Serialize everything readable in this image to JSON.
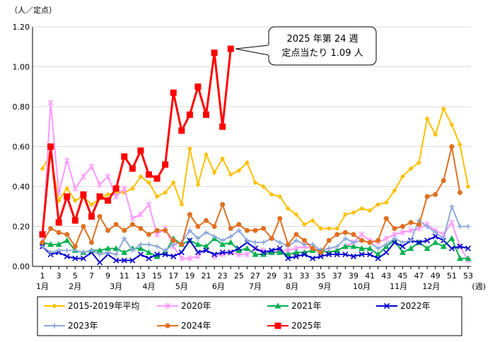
{
  "chart_data": {
    "type": "line",
    "y_unit_label": "（人／定点）",
    "x_unit_label": "(週)",
    "ylim": [
      0,
      1.2
    ],
    "yticks": [
      "0.00",
      "0.20",
      "0.40",
      "0.60",
      "0.80",
      "1.00",
      "1.20"
    ],
    "ytick_values": [
      0,
      0.2,
      0.4,
      0.6,
      0.8,
      1.0,
      1.2
    ],
    "xlim": [
      1,
      53
    ],
    "xticks": [
      1,
      3,
      5,
      7,
      9,
      11,
      13,
      15,
      17,
      19,
      21,
      23,
      25,
      27,
      29,
      31,
      33,
      35,
      37,
      39,
      41,
      43,
      45,
      47,
      49,
      51,
      53
    ],
    "month_labels": [
      {
        "week": 1,
        "label": "1月"
      },
      {
        "week": 5,
        "label": "2月"
      },
      {
        "week": 10,
        "label": "3月"
      },
      {
        "week": 14,
        "label": "4月"
      },
      {
        "week": 18,
        "label": "5月"
      },
      {
        "week": 22.5,
        "label": "6月"
      },
      {
        "week": 27,
        "label": "7月"
      },
      {
        "week": 31.5,
        "label": "8月"
      },
      {
        "week": 35.5,
        "label": "9月"
      },
      {
        "week": 40,
        "label": "10月"
      },
      {
        "week": 44.5,
        "label": "11月"
      },
      {
        "week": 48.5,
        "label": "12月"
      }
    ],
    "grid": "horizontal",
    "legend_position": "bottom",
    "annotation": {
      "lines": [
        "2025 年第 24 週",
        "定点当たり 1.09 人"
      ],
      "target_week": 24,
      "target_value": 1.09
    },
    "series": [
      {
        "name": "2015-2019年平均",
        "color": "#ffc000",
        "marker": "diamond",
        "values": [
          0.49,
          0.56,
          0.33,
          0.39,
          0.33,
          0.35,
          0.31,
          0.34,
          0.36,
          0.37,
          0.37,
          0.39,
          0.45,
          0.42,
          0.35,
          0.37,
          0.42,
          0.31,
          0.59,
          0.41,
          0.56,
          0.47,
          0.54,
          0.46,
          0.48,
          0.52,
          0.42,
          0.4,
          0.36,
          0.35,
          0.29,
          0.26,
          0.21,
          0.23,
          0.19,
          0.19,
          0.19,
          0.26,
          0.27,
          0.29,
          0.28,
          0.31,
          0.32,
          0.38,
          0.45,
          0.49,
          0.52,
          0.74,
          0.66,
          0.79,
          0.71,
          0.61,
          0.4
        ]
      },
      {
        "name": "2020年",
        "color": "#ff99ff",
        "marker": "star",
        "values": [
          0.11,
          0.82,
          0.37,
          0.53,
          0.39,
          0.45,
          0.5,
          0.41,
          0.45,
          0.35,
          0.39,
          0.24,
          0.26,
          0.31,
          0.16,
          0.19,
          0.1,
          0.04,
          0.04,
          0.05,
          0.09,
          0.05,
          0.06,
          0.07,
          0.06,
          0.06,
          0.09,
          0.08,
          0.07,
          0.08,
          0.08,
          0.09,
          0.1,
          0.09,
          0.08,
          0.07,
          0.08,
          0.1,
          0.12,
          0.16,
          0.13,
          0.12,
          0.14,
          0.16,
          0.17,
          0.18,
          0.19,
          0.21,
          0.18,
          0.16,
          0.22,
          0.1,
          0.03
        ]
      },
      {
        "name": "2021年",
        "color": "#00b050",
        "marker": "triangle",
        "values": [
          0.12,
          0.11,
          0.11,
          0.13,
          0.08,
          0.07,
          0.08,
          0.08,
          0.09,
          0.09,
          0.07,
          0.09,
          0.09,
          0.07,
          0.05,
          0.07,
          0.14,
          0.11,
          0.13,
          0.11,
          0.1,
          0.14,
          0.11,
          0.12,
          0.08,
          0.09,
          0.06,
          0.06,
          0.07,
          0.07,
          0.06,
          0.07,
          0.07,
          0.08,
          0.08,
          0.07,
          0.08,
          0.1,
          0.1,
          0.09,
          0.09,
          0.06,
          0.1,
          0.13,
          0.07,
          0.09,
          0.12,
          0.09,
          0.12,
          0.1,
          0.14,
          0.04,
          0.04
        ]
      },
      {
        "name": "2022年",
        "color": "#0000cc",
        "marker": "x",
        "values": [
          0.1,
          0.06,
          0.07,
          0.05,
          0.04,
          0.04,
          0.07,
          0.02,
          0.06,
          0.03,
          0.03,
          0.03,
          0.06,
          0.04,
          0.06,
          0.06,
          0.05,
          0.07,
          0.13,
          0.07,
          0.08,
          0.06,
          0.07,
          0.07,
          0.09,
          0.12,
          0.09,
          0.07,
          0.08,
          0.09,
          0.04,
          0.05,
          0.06,
          0.04,
          0.05,
          0.06,
          0.06,
          0.06,
          0.05,
          0.06,
          0.06,
          0.04,
          0.07,
          0.12,
          0.1,
          0.13,
          0.12,
          0.13,
          0.15,
          0.13,
          0.09,
          0.1,
          0.09
        ]
      },
      {
        "name": "2023年",
        "color": "#8ea9db",
        "marker": "plus",
        "values": [
          0.1,
          0.07,
          0.08,
          0.08,
          0.08,
          0.07,
          0.08,
          0.06,
          0.07,
          0.06,
          0.14,
          0.08,
          0.11,
          0.11,
          0.1,
          0.08,
          0.11,
          0.12,
          0.18,
          0.14,
          0.17,
          0.15,
          0.13,
          0.15,
          0.18,
          0.13,
          0.12,
          0.12,
          0.14,
          0.12,
          0.1,
          0.13,
          0.11,
          0.11,
          0.08,
          0.09,
          0.1,
          0.14,
          0.12,
          0.13,
          0.12,
          0.09,
          0.11,
          0.14,
          0.12,
          0.13,
          0.23,
          0.2,
          0.17,
          0.14,
          0.3,
          0.2,
          0.2
        ]
      },
      {
        "name": "2024年",
        "color": "#e07020",
        "marker": "circle",
        "values": [
          0.12,
          0.19,
          0.17,
          0.16,
          0.1,
          0.2,
          0.12,
          0.25,
          0.18,
          0.21,
          0.18,
          0.21,
          0.19,
          0.16,
          0.18,
          0.18,
          0.13,
          0.11,
          0.26,
          0.2,
          0.23,
          0.2,
          0.31,
          0.19,
          0.21,
          0.18,
          0.18,
          0.19,
          0.14,
          0.24,
          0.11,
          0.16,
          0.13,
          0.09,
          0.07,
          0.13,
          0.16,
          0.17,
          0.16,
          0.13,
          0.12,
          0.13,
          0.24,
          0.19,
          0.2,
          0.22,
          0.21,
          0.35,
          0.36,
          0.43,
          0.6,
          0.37
        ]
      },
      {
        "name": "2025年",
        "color": "#ff0000",
        "marker": "square",
        "values": [
          0.16,
          0.6,
          0.22,
          0.35,
          0.23,
          0.36,
          0.25,
          0.35,
          0.33,
          0.39,
          0.55,
          0.49,
          0.58,
          0.46,
          0.44,
          0.51,
          0.87,
          0.68,
          0.76,
          0.9,
          0.76,
          1.07,
          0.7,
          1.09
        ]
      }
    ]
  }
}
